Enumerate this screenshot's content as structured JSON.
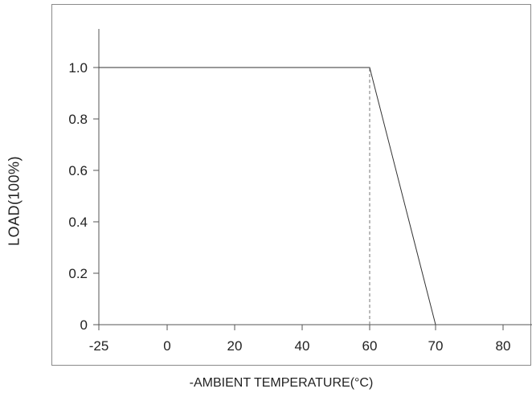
{
  "chart_data": {
    "type": "line",
    "xlabel": "-AMBIENT TEMPERATURE(°C)",
    "ylabel": "LOAD(100%)",
    "x_ticks": [
      -25,
      0,
      20,
      40,
      60,
      70,
      80
    ],
    "x_tick_labels": [
      "-25",
      "0",
      "20",
      "40",
      "60",
      "70",
      "80"
    ],
    "y_ticks": [
      0,
      0.2,
      0.4,
      0.6,
      0.8,
      1.0
    ],
    "y_tick_labels": [
      "0",
      "0.2",
      "0.4",
      "0.6",
      "0.8",
      "1.0"
    ],
    "xlim": [
      -25,
      87
    ],
    "ylim": [
      0,
      1.15
    ],
    "series": [
      {
        "x": [
          -25,
          60,
          70
        ],
        "y": [
          1.0,
          1.0,
          0
        ],
        "color": "#333333"
      }
    ],
    "reference_lines": [
      {
        "x": 60,
        "y_from": 0,
        "y_to": 1.0,
        "style": "dashed"
      }
    ],
    "grid": false
  }
}
